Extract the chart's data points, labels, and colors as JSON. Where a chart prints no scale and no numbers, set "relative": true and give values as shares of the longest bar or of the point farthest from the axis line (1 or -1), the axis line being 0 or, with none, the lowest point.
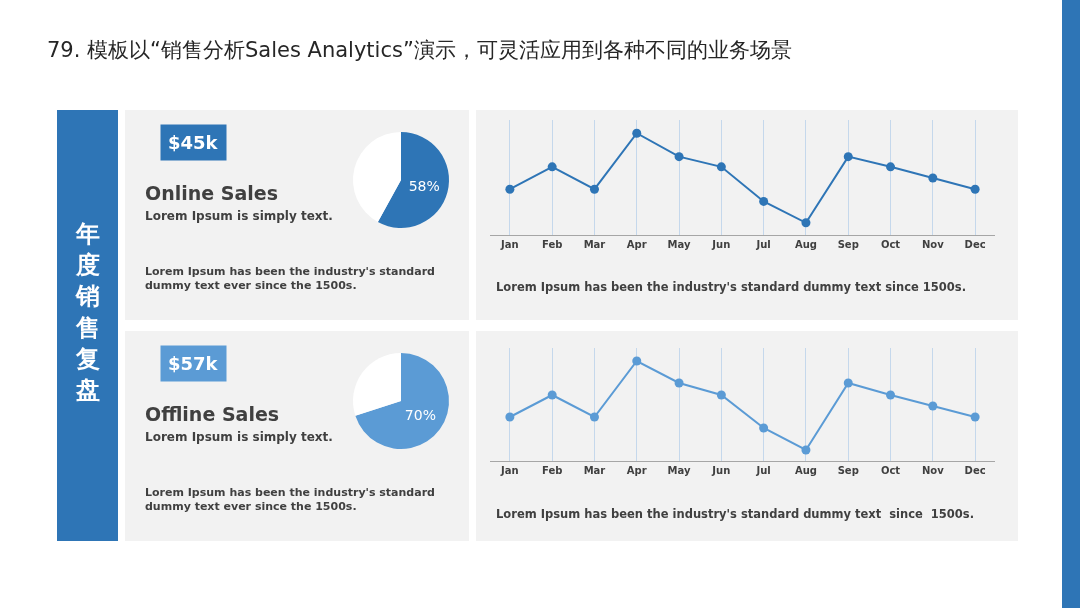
{
  "chart_data": [
    {
      "type": "other",
      "title": "79. 模板以“销售分析Sales Analytics”演示，可灵活应用到各种不同的业务场景",
      "annotations": [
        "年度销售复盘"
      ]
    },
    {
      "type": "pie",
      "title": "Online Sales",
      "subtitle": "Lorem Ipsum is simply text.",
      "annotations": [
        "$45k",
        "Lorem Ipsum has been the industry's standard dummy text ever since the 1500s."
      ],
      "categories": [
        null,
        null
      ],
      "values": [
        58,
        42
      ],
      "colors": [
        "#2e75b6",
        "#ffffff"
      ],
      "value_labels": [
        "58%",
        null
      ]
    },
    {
      "type": "line",
      "relative": true,
      "categories": [
        "Jan",
        "Feb",
        "Mar",
        "Apr",
        "May",
        "Jun",
        "Jul",
        "Aug",
        "Sep",
        "Oct",
        "Nov",
        "Dec"
      ],
      "series": [
        {
          "color": "#2e75b6",
          "values": [
            0.45,
            0.67,
            0.45,
            1,
            0.77,
            0.67,
            0.33,
            0.12,
            0.77,
            0.67,
            0.56,
            0.45
          ]
        }
      ],
      "marker": "circle",
      "line_style": "solid",
      "grid": "x",
      "annotations": [
        "Lorem Ipsum has been the industry's standard dummy text since 1500s."
      ]
    },
    {
      "type": "pie",
      "title": "Offline Sales",
      "subtitle": "Lorem Ipsum is simply text.",
      "annotations": [
        "$57k",
        "Lorem Ipsum has been the industry's standard dummy text ever since the 1500s."
      ],
      "categories": [
        null,
        null
      ],
      "values": [
        70,
        30
      ],
      "colors": [
        "#5b9bd5",
        "#ffffff"
      ],
      "value_labels": [
        "70%",
        null
      ]
    },
    {
      "type": "line",
      "relative": true,
      "categories": [
        "Jan",
        "Feb",
        "Mar",
        "Apr",
        "May",
        "Jun",
        "Jul",
        "Aug",
        "Sep",
        "Oct",
        "Nov",
        "Dec"
      ],
      "series": [
        {
          "color": "#5b9bd5",
          "values": [
            0.44,
            0.66,
            0.44,
            1,
            0.78,
            0.66,
            0.33,
            0.11,
            0.78,
            0.66,
            0.55,
            0.44
          ]
        }
      ],
      "marker": "circle",
      "line_style": "solid",
      "grid": "x",
      "annotations": [
        "Lorem Ipsum has been the industry's standard dummy text  since  1500s."
      ]
    }
  ]
}
